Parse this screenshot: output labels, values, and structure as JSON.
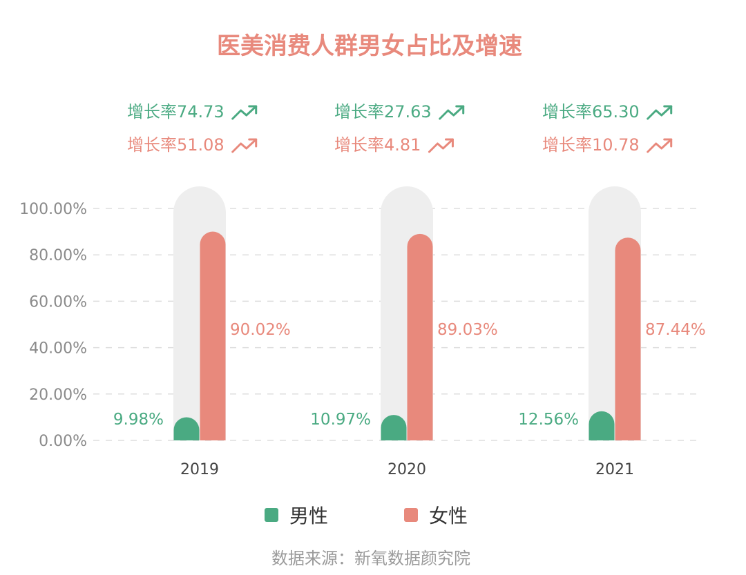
{
  "title": "医美消费人群男女占比及增速",
  "source": "数据来源：新氧数据颜究院",
  "colors": {
    "male": "#4aaa82",
    "female": "#e8897c",
    "track": "#eeeeee",
    "title": "#e8897c",
    "grid": "#dddddd"
  },
  "growth_icon": "trending-up-arrow-icon",
  "chart_data": {
    "type": "bar",
    "title": "医美消费人群男女占比及增速",
    "categories": [
      "2019",
      "2020",
      "2021"
    ],
    "ylim": [
      0,
      100
    ],
    "y_ticks": [
      "0.00%",
      "20.00%",
      "40.00%",
      "60.00%",
      "80.00%",
      "100.00%"
    ],
    "grid": true,
    "legend_position": "bottom",
    "series": [
      {
        "name": "男性",
        "values": [
          9.98,
          10.97,
          12.56
        ],
        "labels": [
          "9.98%",
          "10.97%",
          "12.56%"
        ],
        "growth": [
          "增长率74.73",
          "增长率27.63",
          "增长率65.30"
        ]
      },
      {
        "name": "女性",
        "values": [
          90.02,
          89.03,
          87.44
        ],
        "labels": [
          "90.02%",
          "89.03%",
          "87.44%"
        ],
        "growth": [
          "增长率51.08",
          "增长率4.81",
          "增长率10.78"
        ]
      }
    ]
  }
}
